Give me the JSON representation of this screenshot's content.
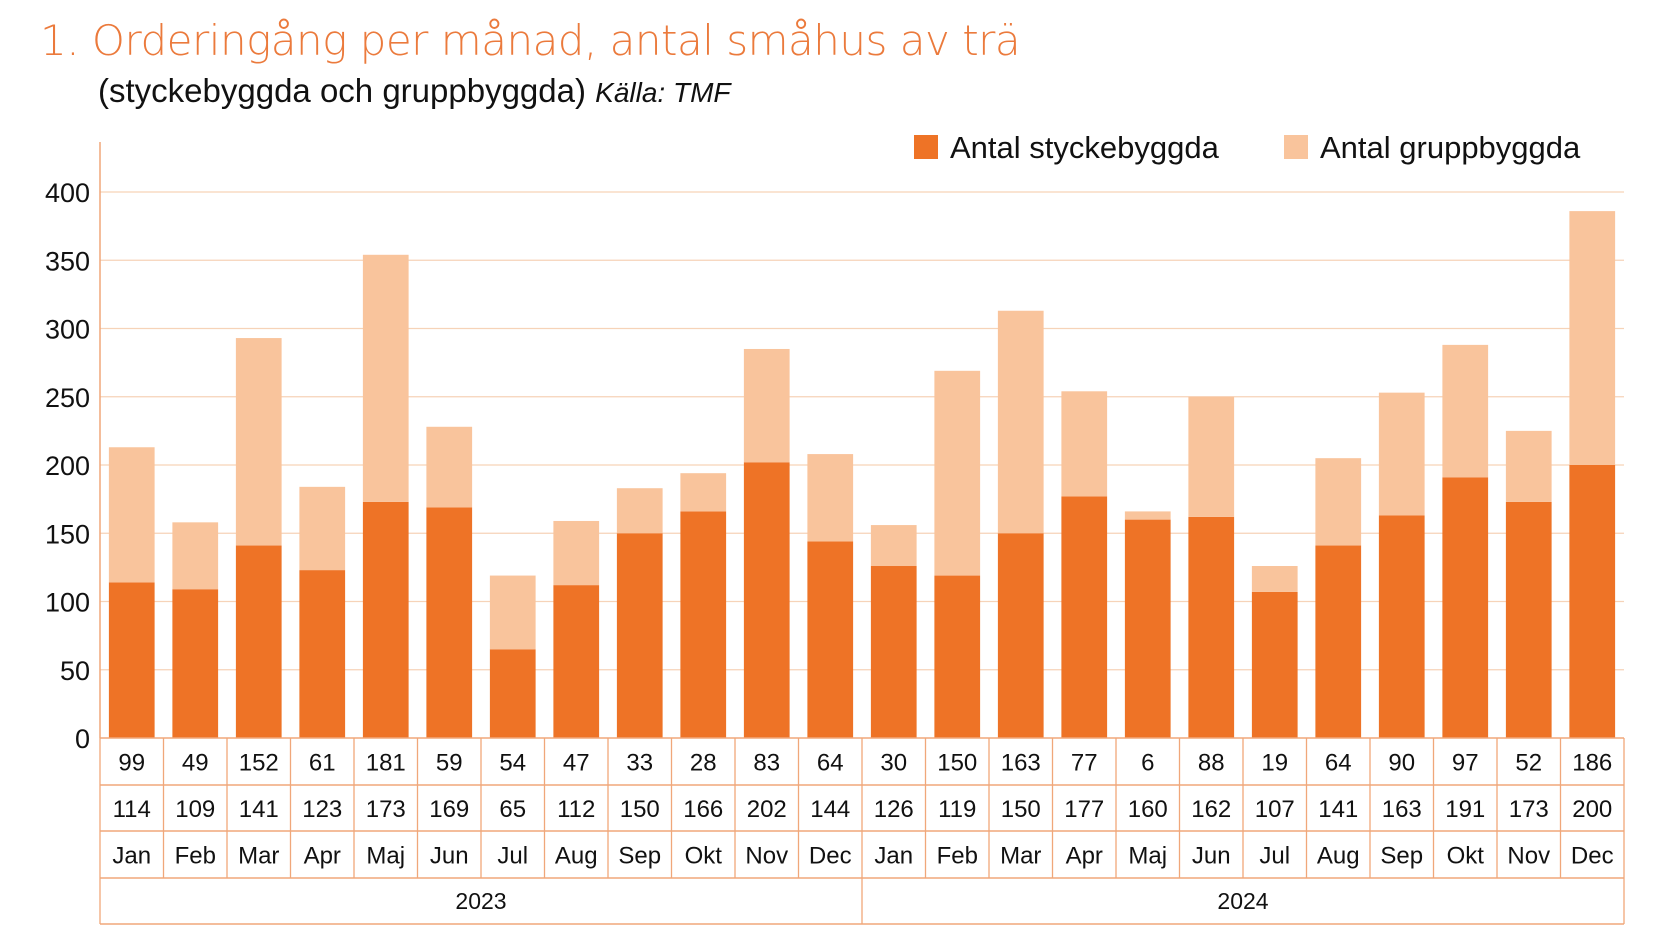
{
  "chart_data": {
    "type": "bar",
    "stacked": true,
    "title": "1. Orderingång per månad, antal småhus av trä",
    "subtitle": "(styckebyggda och gruppbyggda)",
    "source": "Källa: TMF",
    "ylim": [
      0,
      400
    ],
    "yticks": [
      0,
      50,
      100,
      150,
      200,
      250,
      300,
      350,
      400
    ],
    "grid": true,
    "legend_position": "top-right",
    "categories": [
      "Jan",
      "Feb",
      "Mar",
      "Apr",
      "Maj",
      "Jun",
      "Jul",
      "Aug",
      "Sep",
      "Okt",
      "Nov",
      "Dec",
      "Jan",
      "Feb",
      "Mar",
      "Apr",
      "Maj",
      "Jun",
      "Jul",
      "Aug",
      "Sep",
      "Okt",
      "Nov",
      "Dec"
    ],
    "years": [
      {
        "label": "2023",
        "months": 12
      },
      {
        "label": "2024",
        "months": 12
      }
    ],
    "series": [
      {
        "name": "Antal styckebyggda",
        "color": "#EE7326",
        "values": [
          114,
          109,
          141,
          123,
          173,
          169,
          65,
          112,
          150,
          166,
          202,
          144,
          126,
          119,
          150,
          177,
          160,
          162,
          107,
          141,
          163,
          191,
          173,
          200
        ]
      },
      {
        "name": "Antal gruppbyggda",
        "color": "#F9C49C",
        "values": [
          99,
          49,
          152,
          61,
          181,
          59,
          54,
          47,
          33,
          28,
          83,
          64,
          30,
          150,
          163,
          77,
          6,
          88,
          19,
          64,
          90,
          97,
          52,
          186
        ]
      }
    ]
  }
}
